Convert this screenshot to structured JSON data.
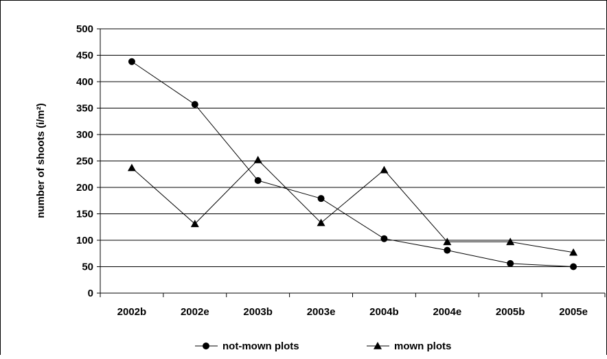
{
  "chart_data": {
    "type": "line",
    "categories": [
      "2002b",
      "2002e",
      "2003b",
      "2003e",
      "2004b",
      "2004e",
      "2005b",
      "2005e"
    ],
    "series": [
      {
        "name": "not-mown plots",
        "marker": "circle",
        "values": [
          438,
          357,
          213,
          179,
          103,
          81,
          56,
          50
        ]
      },
      {
        "name": "mown plots",
        "marker": "triangle",
        "values": [
          237,
          131,
          252,
          133,
          233,
          97,
          97,
          77
        ]
      }
    ],
    "title": "",
    "xlabel": "",
    "ylabel": "number of shoots (i/m²)",
    "ylim": [
      0,
      500
    ],
    "yticks": [
      0,
      50,
      100,
      150,
      200,
      250,
      300,
      350,
      400,
      450,
      500
    ],
    "grid": "horizontal",
    "legend": "bottom",
    "colors": {
      "line": "#000000",
      "grid": "#000000",
      "background": "#ffffff"
    }
  }
}
